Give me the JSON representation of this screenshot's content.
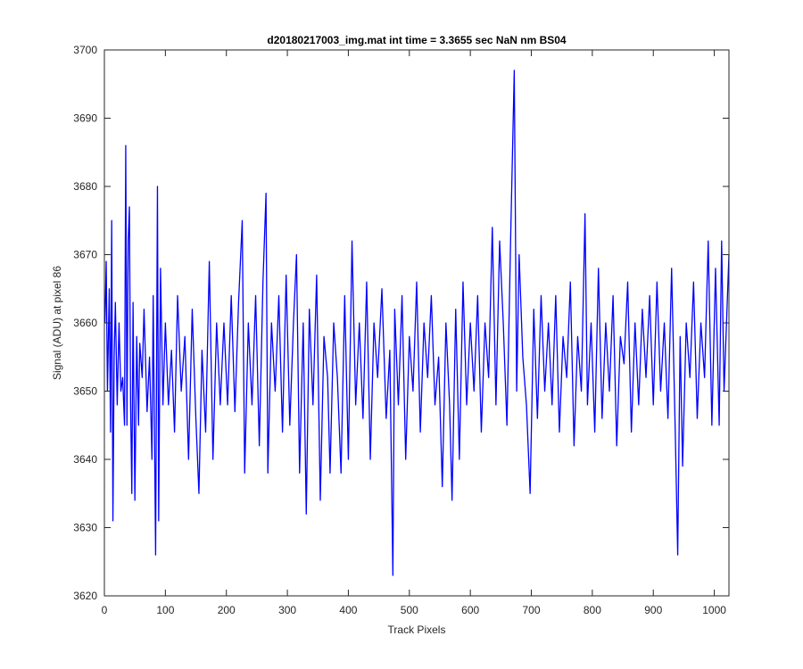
{
  "chart_data": {
    "type": "line",
    "title": "d20180217003_img.mat int time = 3.3655 sec  NaN nm BS04",
    "xlabel": "Track Pixels",
    "ylabel": "Signal (ADU) at pixel 86",
    "xlim": [
      0,
      1024
    ],
    "ylim": [
      3620,
      3700
    ],
    "xticks": [
      0,
      100,
      200,
      300,
      400,
      500,
      600,
      700,
      800,
      900,
      1000
    ],
    "yticks": [
      3620,
      3630,
      3640,
      3650,
      3660,
      3670,
      3680,
      3690,
      3700
    ],
    "grid": false,
    "box": true,
    "series": [
      {
        "color": "#0000ff",
        "x_start": 1,
        "x_step": 1,
        "values_note_points": [
          [
            1,
            3660
          ],
          [
            3,
            3669
          ],
          [
            5,
            3650
          ],
          [
            8,
            3665
          ],
          [
            10,
            3644
          ],
          [
            12,
            3675
          ],
          [
            14,
            3631
          ],
          [
            16,
            3655
          ],
          [
            18,
            3663
          ],
          [
            21,
            3648
          ],
          [
            24,
            3660
          ],
          [
            27,
            3650
          ],
          [
            30,
            3652
          ],
          [
            33,
            3645
          ],
          [
            35,
            3686
          ],
          [
            37,
            3645
          ],
          [
            39,
            3672
          ],
          [
            41,
            3677
          ],
          [
            43,
            3648
          ],
          [
            45,
            3635
          ],
          [
            47,
            3663
          ],
          [
            50,
            3634
          ],
          [
            53,
            3658
          ],
          [
            56,
            3645
          ],
          [
            58,
            3657
          ],
          [
            62,
            3652
          ],
          [
            65,
            3662
          ],
          [
            70,
            3647
          ],
          [
            74,
            3655
          ],
          [
            78,
            3640
          ],
          [
            80,
            3664
          ],
          [
            84,
            3626
          ],
          [
            87,
            3680
          ],
          [
            89,
            3631
          ],
          [
            92,
            3668
          ],
          [
            96,
            3648
          ],
          [
            100,
            3660
          ],
          [
            105,
            3648
          ],
          [
            110,
            3656
          ],
          [
            115,
            3644
          ],
          [
            120,
            3664
          ],
          [
            126,
            3650
          ],
          [
            132,
            3658
          ],
          [
            138,
            3640
          ],
          [
            144,
            3662
          ],
          [
            150,
            3646
          ],
          [
            155,
            3635
          ],
          [
            160,
            3656
          ],
          [
            166,
            3644
          ],
          [
            172,
            3669
          ],
          [
            178,
            3640
          ],
          [
            184,
            3660
          ],
          [
            190,
            3648
          ],
          [
            196,
            3660
          ],
          [
            202,
            3648
          ],
          [
            208,
            3664
          ],
          [
            214,
            3647
          ],
          [
            220,
            3663
          ],
          [
            226,
            3675
          ],
          [
            230,
            3638
          ],
          [
            236,
            3660
          ],
          [
            242,
            3648
          ],
          [
            248,
            3664
          ],
          [
            254,
            3642
          ],
          [
            260,
            3666
          ],
          [
            265,
            3679
          ],
          [
            268,
            3638
          ],
          [
            274,
            3660
          ],
          [
            280,
            3650
          ],
          [
            286,
            3664
          ],
          [
            292,
            3644
          ],
          [
            298,
            3667
          ],
          [
            304,
            3645
          ],
          [
            310,
            3660
          ],
          [
            315,
            3670
          ],
          [
            320,
            3638
          ],
          [
            326,
            3660
          ],
          [
            331,
            3632
          ],
          [
            336,
            3662
          ],
          [
            342,
            3648
          ],
          [
            348,
            3667
          ],
          [
            354,
            3634
          ],
          [
            360,
            3658
          ],
          [
            366,
            3652
          ],
          [
            370,
            3638
          ],
          [
            376,
            3660
          ],
          [
            382,
            3652
          ],
          [
            388,
            3638
          ],
          [
            394,
            3664
          ],
          [
            400,
            3640
          ],
          [
            406,
            3672
          ],
          [
            412,
            3648
          ],
          [
            418,
            3660
          ],
          [
            424,
            3646
          ],
          [
            430,
            3666
          ],
          [
            436,
            3640
          ],
          [
            442,
            3660
          ],
          [
            448,
            3652
          ],
          [
            455,
            3665
          ],
          [
            462,
            3646
          ],
          [
            468,
            3656
          ],
          [
            473,
            3623
          ],
          [
            476,
            3662
          ],
          [
            482,
            3648
          ],
          [
            488,
            3664
          ],
          [
            494,
            3640
          ],
          [
            500,
            3658
          ],
          [
            506,
            3650
          ],
          [
            512,
            3666
          ],
          [
            518,
            3644
          ],
          [
            524,
            3660
          ],
          [
            530,
            3652
          ],
          [
            536,
            3664
          ],
          [
            542,
            3648
          ],
          [
            548,
            3655
          ],
          [
            554,
            3636
          ],
          [
            560,
            3660
          ],
          [
            566,
            3648
          ],
          [
            570,
            3634
          ],
          [
            576,
            3662
          ],
          [
            582,
            3640
          ],
          [
            588,
            3666
          ],
          [
            594,
            3648
          ],
          [
            600,
            3660
          ],
          [
            606,
            3650
          ],
          [
            612,
            3664
          ],
          [
            618,
            3644
          ],
          [
            624,
            3660
          ],
          [
            630,
            3652
          ],
          [
            636,
            3674
          ],
          [
            642,
            3648
          ],
          [
            648,
            3672
          ],
          [
            654,
            3660
          ],
          [
            660,
            3645
          ],
          [
            666,
            3672
          ],
          [
            672,
            3697
          ],
          [
            676,
            3650
          ],
          [
            680,
            3670
          ],
          [
            686,
            3655
          ],
          [
            692,
            3648
          ],
          [
            698,
            3635
          ],
          [
            704,
            3662
          ],
          [
            710,
            3646
          ],
          [
            716,
            3664
          ],
          [
            722,
            3650
          ],
          [
            728,
            3660
          ],
          [
            734,
            3648
          ],
          [
            740,
            3664
          ],
          [
            746,
            3644
          ],
          [
            752,
            3658
          ],
          [
            758,
            3652
          ],
          [
            764,
            3666
          ],
          [
            770,
            3642
          ],
          [
            776,
            3658
          ],
          [
            782,
            3650
          ],
          [
            788,
            3676
          ],
          [
            792,
            3648
          ],
          [
            798,
            3660
          ],
          [
            804,
            3644
          ],
          [
            810,
            3668
          ],
          [
            816,
            3646
          ],
          [
            822,
            3660
          ],
          [
            828,
            3650
          ],
          [
            834,
            3664
          ],
          [
            840,
            3642
          ],
          [
            846,
            3658
          ],
          [
            852,
            3654
          ],
          [
            858,
            3666
          ],
          [
            864,
            3644
          ],
          [
            870,
            3660
          ],
          [
            876,
            3648
          ],
          [
            882,
            3662
          ],
          [
            888,
            3652
          ],
          [
            894,
            3664
          ],
          [
            900,
            3648
          ],
          [
            906,
            3666
          ],
          [
            912,
            3650
          ],
          [
            918,
            3660
          ],
          [
            924,
            3646
          ],
          [
            930,
            3668
          ],
          [
            936,
            3644
          ],
          [
            940,
            3626
          ],
          [
            944,
            3658
          ],
          [
            948,
            3639
          ],
          [
            954,
            3660
          ],
          [
            960,
            3652
          ],
          [
            966,
            3666
          ],
          [
            972,
            3646
          ],
          [
            978,
            3660
          ],
          [
            984,
            3652
          ],
          [
            990,
            3672
          ],
          [
            996,
            3645
          ],
          [
            1002,
            3668
          ],
          [
            1008,
            3645
          ],
          [
            1012,
            3672
          ],
          [
            1016,
            3650
          ],
          [
            1020,
            3660
          ],
          [
            1024,
            3670
          ]
        ]
      }
    ]
  }
}
